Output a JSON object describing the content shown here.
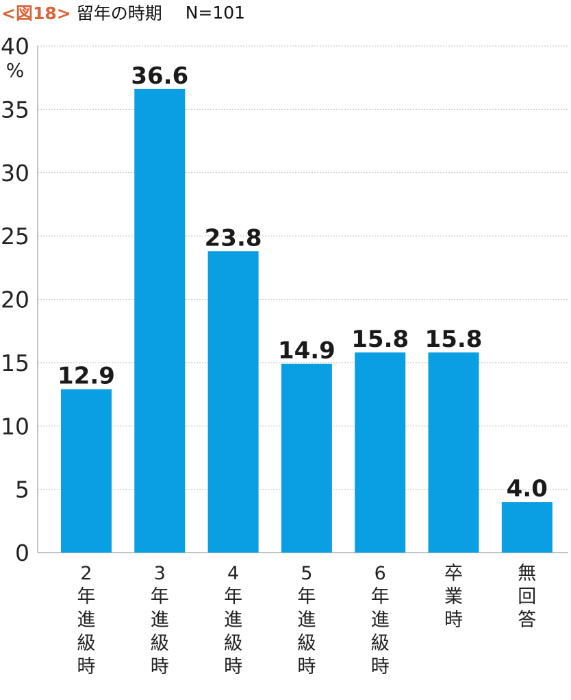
{
  "header": {
    "figure_tag": "<図18>",
    "title": "留年の時期",
    "sample_size": "N=101"
  },
  "chart_data": {
    "type": "bar",
    "title": "留年の時期",
    "categories": [
      "2年進級時",
      "3年進級時",
      "4年進級時",
      "5年進級時",
      "6年進級時",
      "卒業時",
      "無回答"
    ],
    "category_labels": [
      [
        "2",
        "年",
        "進",
        "級",
        "時"
      ],
      [
        "3",
        "年",
        "進",
        "級",
        "時"
      ],
      [
        "4",
        "年",
        "進",
        "級",
        "時"
      ],
      [
        "5",
        "年",
        "進",
        "級",
        "時"
      ],
      [
        "6",
        "年",
        "進",
        "級",
        "時"
      ],
      [
        "卒",
        "業",
        "時"
      ],
      [
        "無",
        "回",
        "答"
      ]
    ],
    "values": [
      12.9,
      36.6,
      23.8,
      14.9,
      15.8,
      15.8,
      4.0
    ],
    "value_labels": [
      "12.9",
      "36.6",
      "23.8",
      "14.9",
      "15.8",
      "15.8",
      "4.0"
    ],
    "ylim": [
      0,
      40
    ],
    "yticks": [
      0,
      5,
      10,
      15,
      20,
      25,
      30,
      35,
      40
    ],
    "ytick_labels": [
      "0",
      "5",
      "10",
      "15",
      "20",
      "25",
      "30",
      "35",
      "40"
    ],
    "ylabel": "%",
    "xlabel": "",
    "grid": true,
    "bar_color": "#0a9fe3",
    "grid_color": "#bdbdbd"
  }
}
